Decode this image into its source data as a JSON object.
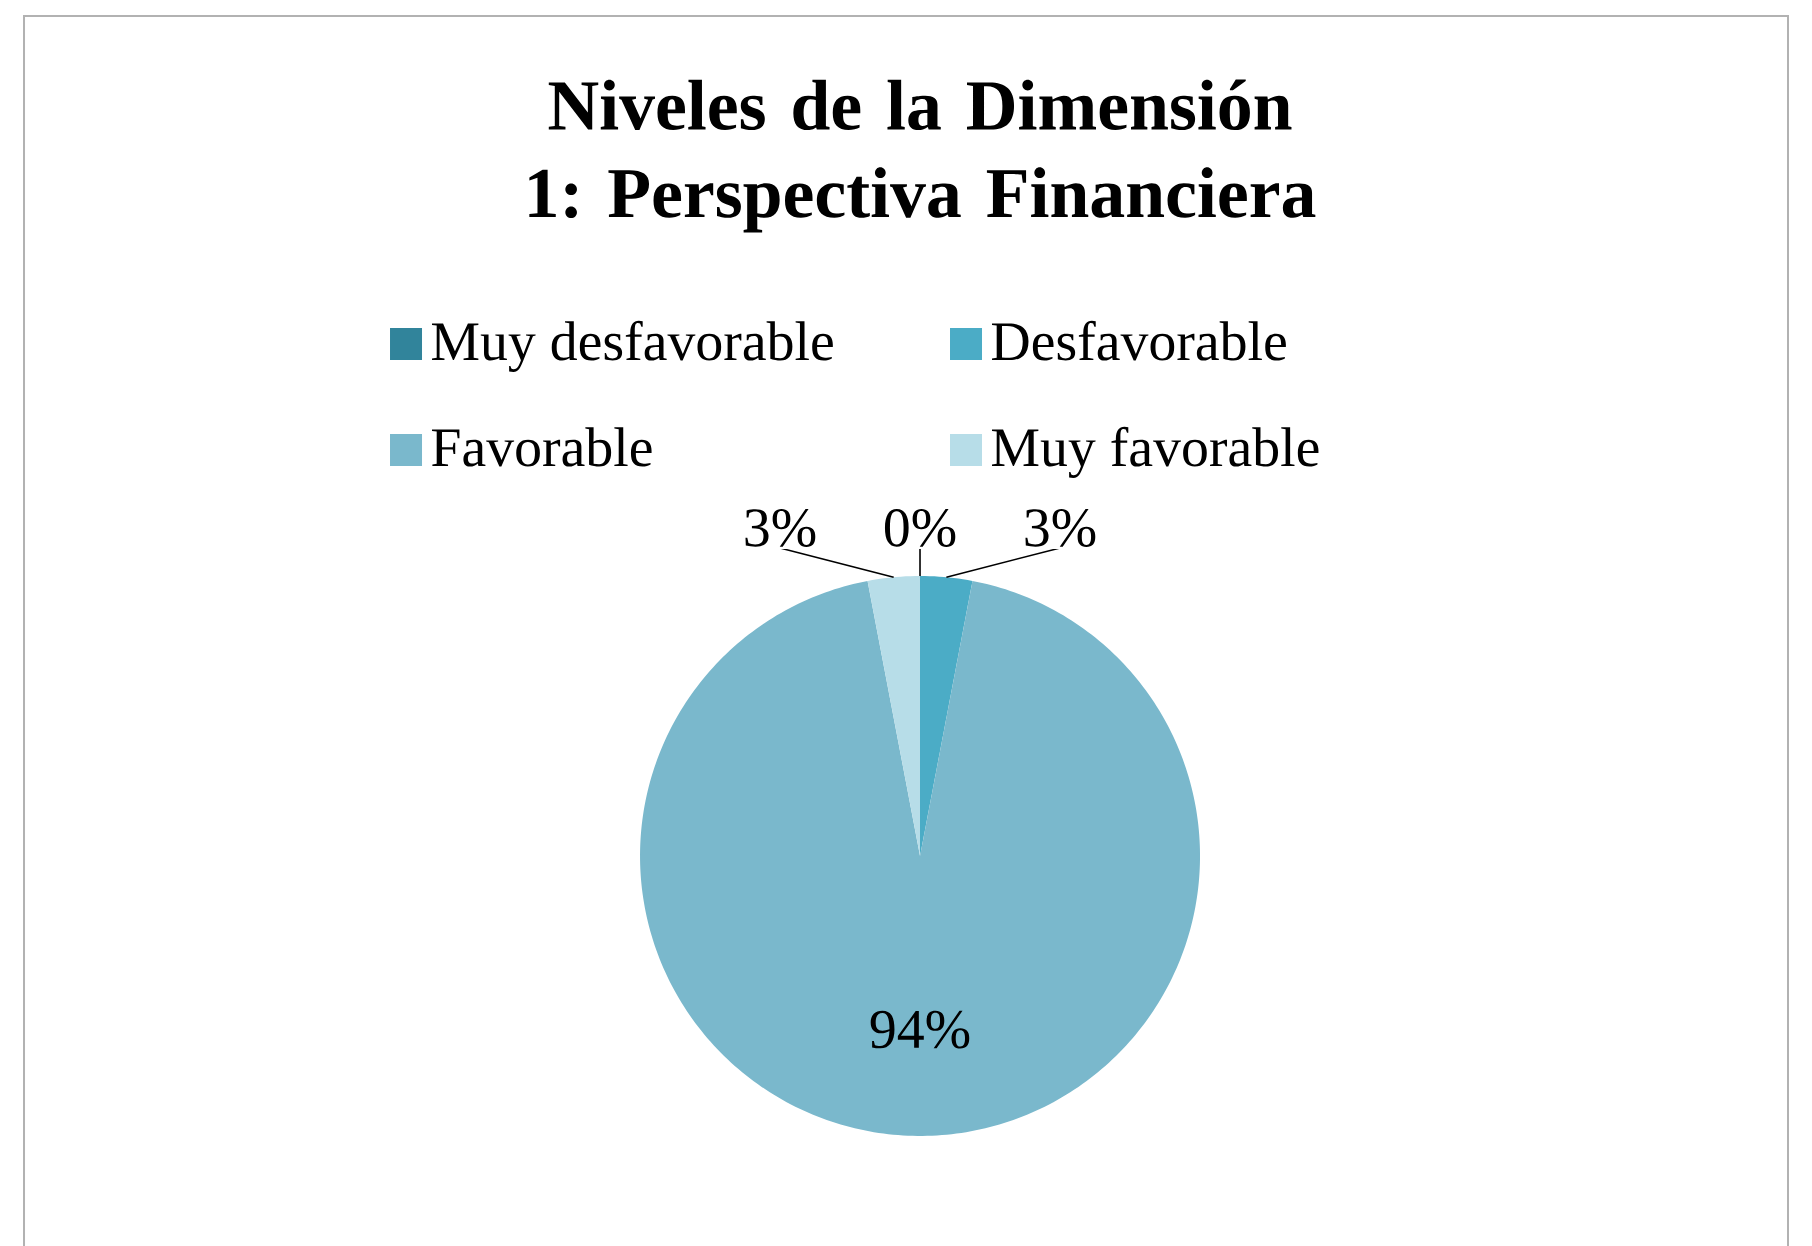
{
  "chart_data": {
    "type": "pie",
    "title": "Niveles de la Dimensión 1: Perspectiva Financiera",
    "categories": [
      "Muy desfavorable",
      "Desfavorable",
      "Favorable",
      "Muy favorable"
    ],
    "values": [
      0,
      3,
      94,
      3
    ],
    "colors": [
      "#31849b",
      "#4bacc6",
      "#7ab8cc",
      "#b7dde8"
    ],
    "value_labels": [
      "0%",
      "3%",
      "94%",
      "3%"
    ],
    "legend": "top"
  }
}
